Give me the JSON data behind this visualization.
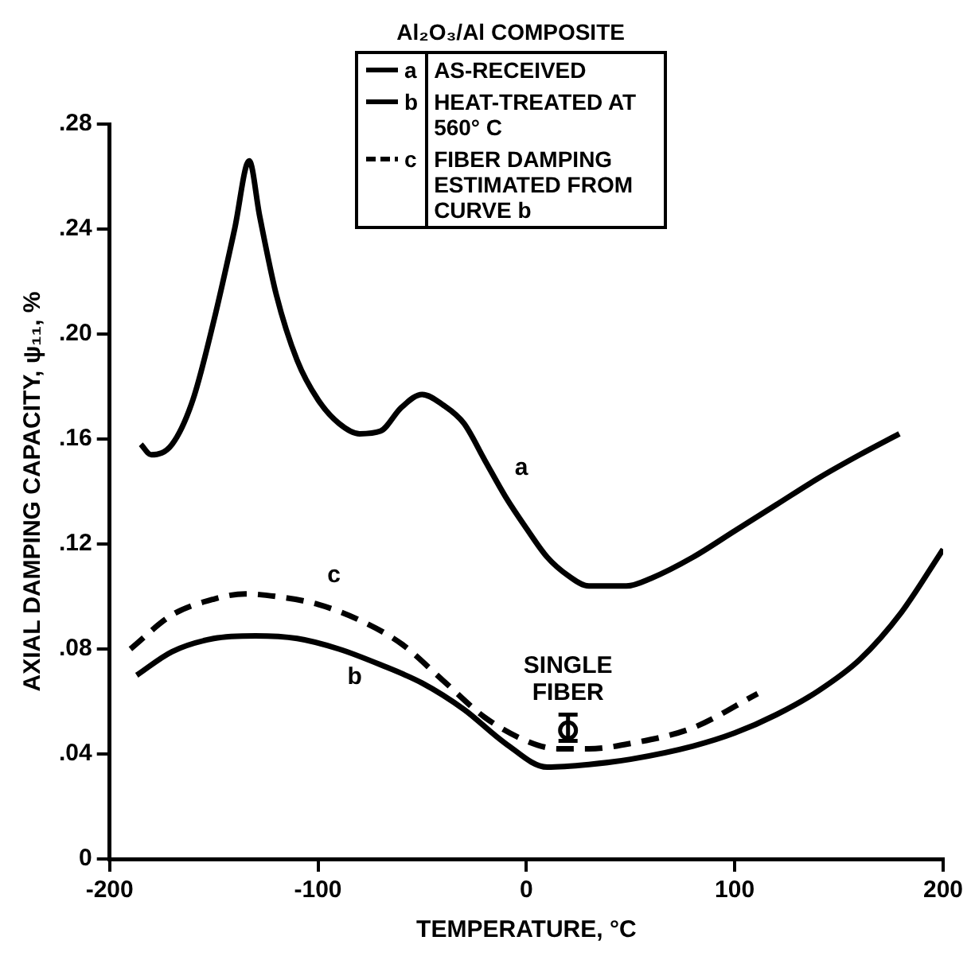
{
  "chart_data": {
    "type": "line",
    "legend_title": "Al₂O₃/Al COMPOSITE",
    "xlabel": "TEMPERATURE, °C",
    "ylabel": "AXIAL DAMPING CAPACITY, ψ₁₁, %",
    "series": [
      {
        "name": "AS-RECEIVED",
        "color": "#000000",
        "line_style": "solid",
        "x": [
          -185,
          -180,
          -170,
          -160,
          -150,
          -140,
          -133,
          -128,
          -120,
          -110,
          -100,
          -90,
          -80,
          -70,
          -60,
          -50,
          -40,
          -30,
          -20,
          -10,
          0,
          10,
          20,
          30,
          48,
          60,
          80,
          100,
          120,
          140,
          160,
          179
        ],
        "values": [
          0.158,
          0.154,
          0.158,
          0.175,
          0.205,
          0.24,
          0.266,
          0.245,
          0.215,
          0.19,
          0.175,
          0.166,
          0.162,
          0.163,
          0.172,
          0.177,
          0.173,
          0.166,
          0.152,
          0.138,
          0.126,
          0.115,
          0.108,
          0.104,
          0.104,
          0.107,
          0.115,
          0.125,
          0.135,
          0.145,
          0.154,
          0.162
        ]
      },
      {
        "name": "HEAT-TREATED AT 560° C",
        "color": "#000000",
        "line_style": "solid",
        "x": [
          -187,
          -170,
          -150,
          -130,
          -110,
          -90,
          -70,
          -50,
          -30,
          -10,
          10,
          30,
          50,
          80,
          100,
          120,
          140,
          160,
          180,
          200
        ],
        "values": [
          0.07,
          0.079,
          0.084,
          0.085,
          0.084,
          0.08,
          0.074,
          0.067,
          0.057,
          0.044,
          0.035,
          0.036,
          0.038,
          0.043,
          0.048,
          0.055,
          0.064,
          0.076,
          0.094,
          0.118
        ]
      },
      {
        "name": "FIBER DAMPING ESTIMATED FROM CURVE b",
        "color": "#000000",
        "line_style": "dashed",
        "x": [
          -190,
          -170,
          -150,
          -135,
          -120,
          -100,
          -80,
          -60,
          -40,
          -20,
          0,
          15,
          30,
          50,
          80,
          111
        ],
        "values": [
          0.08,
          0.093,
          0.099,
          0.101,
          0.1,
          0.097,
          0.091,
          0.082,
          0.068,
          0.054,
          0.045,
          0.042,
          0.042,
          0.044,
          0.05,
          0.063
        ]
      },
      {
        "name": "SINGLE FIBER",
        "type": "scatter",
        "color": "#000000",
        "marker": "circle",
        "x": [
          20
        ],
        "values": [
          0.049
        ],
        "errors": [
          [
            0.045,
            0.055
          ]
        ]
      }
    ],
    "annotations": [
      {
        "text": "a",
        "x": -10,
        "y": 0.138
      },
      {
        "text": "b",
        "x": -90,
        "y": 0.08
      },
      {
        "text": "c",
        "x": -100,
        "y": 0.097
      }
    ],
    "xlim": [
      -200,
      200
    ],
    "xticks": [
      -200,
      -100,
      0,
      100,
      200
    ],
    "ylim": [
      0,
      0.28
    ],
    "yticks": [
      {
        "value": 0,
        "label": "0"
      },
      {
        "value": 0.04,
        "label": ".04"
      },
      {
        "value": 0.08,
        "label": ".08"
      },
      {
        "value": 0.12,
        "label": ".12"
      },
      {
        "value": 0.16,
        "label": ".16"
      },
      {
        "value": 0.2,
        "label": ".20"
      },
      {
        "value": 0.24,
        "label": ".24"
      },
      {
        "value": 0.28,
        "label": ".28"
      }
    ],
    "grid": false,
    "legend": "top"
  }
}
